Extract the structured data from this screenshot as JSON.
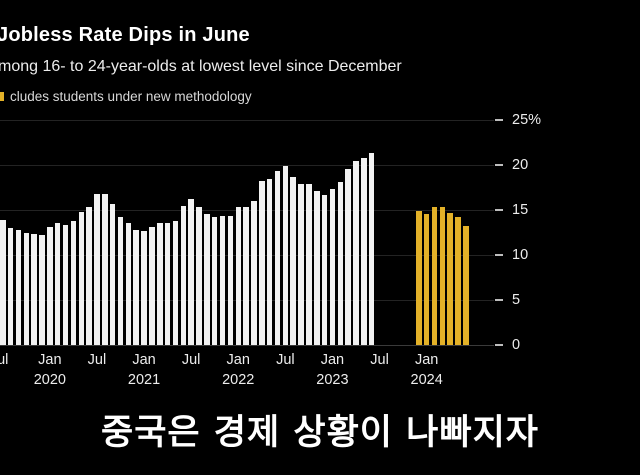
{
  "caption": {
    "text": "중국은 경제 상황이 나빠지자"
  },
  "chart_data": {
    "type": "bar",
    "title": "Jobless Rate Dips in June",
    "subtitle": "mong 16- to 24-year-olds at lowest level since December",
    "legend_note": "cludes students under new methodology",
    "ylabel": "%",
    "ylim": [
      0,
      25
    ],
    "yticks": [
      0,
      5,
      10,
      15,
      20,
      25
    ],
    "ytick_labels": [
      "0",
      "5",
      "10",
      "15",
      "20",
      "25%"
    ],
    "grid": true,
    "legend_position": "top-left",
    "series": [
      {
        "name": "jobless-rate-old-methodology",
        "color": "#f2f2f2",
        "start_month": "2019-07",
        "values": [
          13.9,
          13.0,
          12.8,
          12.4,
          12.3,
          12.2,
          13.1,
          13.6,
          13.3,
          13.8,
          14.8,
          15.3,
          16.8,
          16.8,
          15.7,
          14.2,
          13.6,
          12.8,
          12.7,
          13.1,
          13.6,
          13.6,
          13.8,
          15.4,
          16.2,
          15.3,
          14.6,
          14.2,
          14.3,
          14.3,
          15.3,
          15.3,
          16.0,
          18.2,
          18.4,
          19.3,
          19.9,
          18.7,
          17.9,
          17.9,
          17.1,
          16.7,
          17.3,
          18.1,
          19.6,
          20.4,
          20.8,
          21.3
        ]
      },
      {
        "name": "jobless-rate-new-methodology-excluding-students",
        "color": "#e3b128",
        "start_month": "2023-12",
        "values": [
          14.9,
          14.6,
          15.3,
          15.3,
          14.7,
          14.2,
          13.2
        ]
      }
    ],
    "xticks": [
      {
        "month": "2019-07",
        "label": "ul",
        "year": ""
      },
      {
        "month": "2020-01",
        "label": "Jan",
        "year": "2020"
      },
      {
        "month": "2020-07",
        "label": "Jul",
        "year": ""
      },
      {
        "month": "2021-01",
        "label": "Jan",
        "year": "2021"
      },
      {
        "month": "2021-07",
        "label": "Jul",
        "year": ""
      },
      {
        "month": "2022-01",
        "label": "Jan",
        "year": "2022"
      },
      {
        "month": "2022-07",
        "label": "Jul",
        "year": ""
      },
      {
        "month": "2023-01",
        "label": "Jan",
        "year": "2023"
      },
      {
        "month": "2023-07",
        "label": "Jul",
        "year": ""
      },
      {
        "month": "2024-01",
        "label": "Jan",
        "year": "2024"
      }
    ]
  }
}
